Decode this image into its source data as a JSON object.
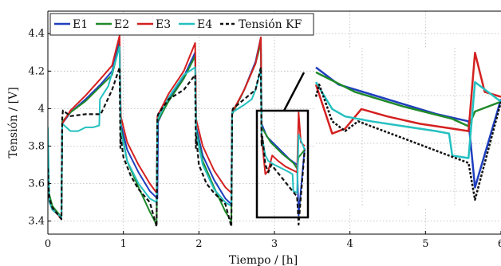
{
  "chart_data": {
    "type": "line",
    "xlabel": "Tiempo / [h]",
    "ylabel": "Tensión / [V]",
    "xlim": [
      0,
      6
    ],
    "ylim": [
      3.33,
      4.52
    ],
    "xticks": [
      "0",
      "1",
      "2",
      "3",
      "4",
      "5",
      "6"
    ],
    "yticks": [
      "3.4",
      "3.6",
      "3.8",
      "4",
      "4.2",
      "4.4"
    ],
    "grid": true,
    "legend_position": "top-left",
    "series": [
      {
        "name": "E1",
        "color": "#1f3fbf",
        "dash": "solid",
        "x": [
          0,
          0.02,
          0.06,
          0.12,
          0.18,
          0.19,
          0.3,
          0.5,
          0.7,
          0.85,
          0.95,
          0.965,
          1.05,
          1.2,
          1.35,
          1.45,
          1.46,
          1.6,
          1.8,
          1.95,
          1.965,
          2.05,
          2.2,
          2.35,
          2.43,
          2.44,
          2.6,
          2.75,
          2.82,
          2.83,
          2.9,
          3.0,
          3.1,
          3.2,
          3.3,
          3.32,
          3.4
        ],
        "y": [
          3.6,
          3.52,
          3.47,
          3.44,
          3.42,
          3.92,
          3.98,
          4.05,
          4.13,
          4.2,
          4.36,
          3.92,
          3.78,
          3.66,
          3.56,
          3.52,
          3.93,
          4.05,
          4.17,
          4.3,
          3.9,
          3.75,
          3.62,
          3.52,
          3.49,
          3.97,
          4.1,
          4.25,
          4.38,
          3.92,
          3.85,
          3.81,
          3.77,
          3.73,
          3.7,
          3.43,
          3.79
        ]
      },
      {
        "name": "E2",
        "color": "#1f8a2a",
        "dash": "solid",
        "x": [
          0,
          0.02,
          0.06,
          0.12,
          0.18,
          0.19,
          0.3,
          0.5,
          0.7,
          0.85,
          0.95,
          0.965,
          1.05,
          1.2,
          1.35,
          1.44,
          1.45,
          1.6,
          1.8,
          1.95,
          1.965,
          2.05,
          2.2,
          2.35,
          2.43,
          2.44,
          2.6,
          2.75,
          2.82,
          2.83,
          2.95,
          3.1,
          3.25,
          3.3,
          3.32,
          3.4
        ],
        "y": [
          3.65,
          3.54,
          3.48,
          3.45,
          3.42,
          3.93,
          3.98,
          4.04,
          4.12,
          4.18,
          4.34,
          3.9,
          3.72,
          3.58,
          3.45,
          3.38,
          3.93,
          4.04,
          4.16,
          4.28,
          3.88,
          3.72,
          3.58,
          3.45,
          3.4,
          3.97,
          4.1,
          4.24,
          4.35,
          3.9,
          3.82,
          3.76,
          3.71,
          3.68,
          3.74,
          3.78
        ]
      },
      {
        "name": "E3",
        "color": "#d42020",
        "dash": "solid",
        "x": [
          0,
          0.02,
          0.06,
          0.12,
          0.18,
          0.19,
          0.3,
          0.5,
          0.7,
          0.85,
          0.95,
          0.965,
          1.05,
          1.2,
          1.35,
          1.44,
          1.45,
          1.6,
          1.8,
          1.95,
          1.965,
          2.05,
          2.2,
          2.35,
          2.43,
          2.44,
          2.6,
          2.75,
          2.82,
          2.83,
          2.88,
          2.92,
          2.97,
          3.05,
          3.15,
          3.25,
          3.3,
          3.32,
          3.35,
          3.4
        ],
        "y": [
          3.62,
          3.5,
          3.46,
          3.44,
          3.41,
          3.92,
          3.99,
          4.07,
          4.16,
          4.23,
          4.39,
          3.96,
          3.82,
          3.7,
          3.6,
          3.55,
          3.96,
          4.08,
          4.2,
          4.35,
          3.94,
          3.8,
          3.67,
          3.58,
          3.55,
          3.98,
          4.1,
          4.24,
          4.38,
          3.85,
          3.65,
          3.67,
          3.75,
          3.72,
          3.69,
          3.67,
          3.66,
          3.98,
          3.82,
          3.8
        ]
      },
      {
        "name": "E4",
        "color": "#25c0c0",
        "dash": "solid",
        "x": [
          0,
          0.02,
          0.06,
          0.12,
          0.18,
          0.19,
          0.3,
          0.4,
          0.5,
          0.6,
          0.68,
          0.69,
          0.8,
          0.95,
          0.965,
          1.05,
          1.2,
          1.35,
          1.44,
          1.45,
          1.6,
          1.8,
          1.95,
          1.965,
          2.05,
          2.2,
          2.35,
          2.43,
          2.44,
          2.6,
          2.7,
          2.75,
          2.82,
          2.83,
          2.88,
          2.92,
          3.0,
          3.1,
          3.2,
          3.24,
          3.25,
          3.3,
          3.32,
          3.4
        ],
        "y": [
          3.9,
          3.5,
          3.46,
          3.44,
          3.42,
          3.92,
          3.88,
          3.88,
          3.9,
          3.9,
          3.91,
          4.05,
          4.12,
          4.33,
          3.88,
          3.72,
          3.6,
          3.52,
          3.5,
          3.94,
          4.06,
          4.18,
          4.22,
          3.87,
          3.7,
          3.57,
          3.5,
          3.48,
          3.98,
          4.02,
          4.05,
          4.1,
          4.21,
          3.86,
          3.75,
          3.72,
          3.7,
          3.68,
          3.66,
          3.65,
          3.56,
          3.55,
          3.86,
          3.78
        ]
      },
      {
        "name": "Tensión KF",
        "color": "#111111",
        "dash": "dashed",
        "x": [
          0,
          0.01,
          0.02,
          0.06,
          0.12,
          0.18,
          0.19,
          0.2,
          0.3,
          0.5,
          0.7,
          0.85,
          0.95,
          0.96,
          0.965,
          1.0,
          1.1,
          1.2,
          1.35,
          1.44,
          1.45,
          1.46,
          1.6,
          1.8,
          1.95,
          1.96,
          1.965,
          2.0,
          2.1,
          2.2,
          2.35,
          2.43,
          2.44,
          2.45,
          2.6,
          2.75,
          2.82,
          2.83,
          2.84,
          2.88,
          2.92,
          2.96,
          3.0,
          3.1,
          3.2,
          3.3,
          3.32,
          3.4
        ],
        "y": [
          3.68,
          3.58,
          3.52,
          3.47,
          3.44,
          3.41,
          3.95,
          3.99,
          3.96,
          3.97,
          3.97,
          4.1,
          4.22,
          3.79,
          3.85,
          3.74,
          3.64,
          3.57,
          3.5,
          3.37,
          3.95,
          3.97,
          4.05,
          4.1,
          4.18,
          3.79,
          3.85,
          3.7,
          3.6,
          3.55,
          3.49,
          3.37,
          3.98,
          4.0,
          4.05,
          4.1,
          4.22,
          3.8,
          3.85,
          3.7,
          3.66,
          3.7,
          3.68,
          3.63,
          3.58,
          3.53,
          3.38,
          3.78
        ]
      }
    ]
  }
}
